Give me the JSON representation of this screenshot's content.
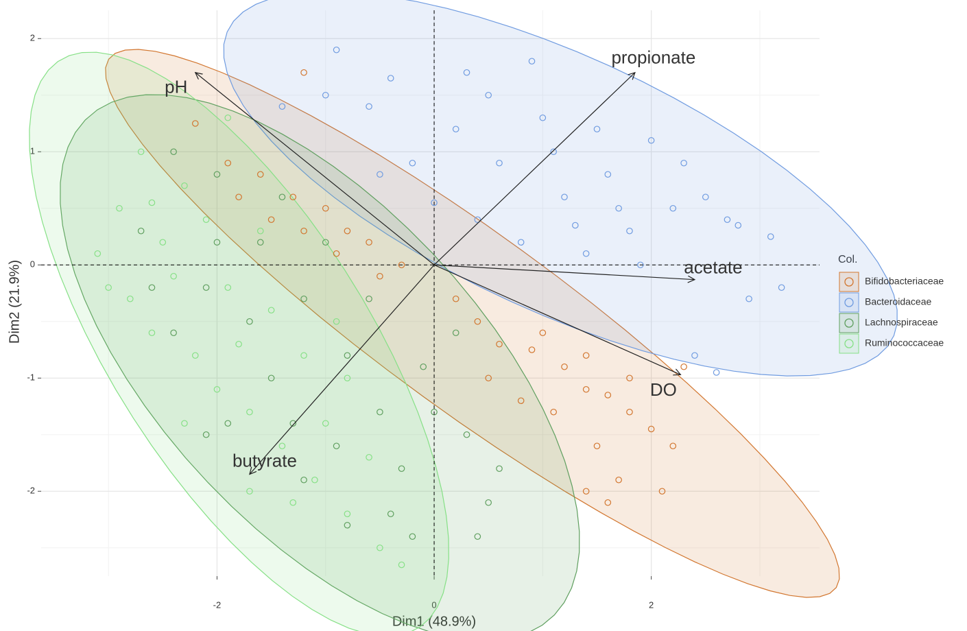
{
  "chart_data": {
    "type": "biplot",
    "xlabel": "Dim1 (48.9%)",
    "ylabel": "Dim2 (21.9%)",
    "xlim": [
      -3.62,
      3.55
    ],
    "ylim": [
      -2.75,
      2.25
    ],
    "xticks": [
      -2,
      0,
      2
    ],
    "yticks": [
      -2,
      -1,
      0,
      1,
      2
    ],
    "xminor": [
      -3,
      -1,
      1,
      3
    ],
    "yminor": [
      -2.5,
      -1.5,
      -0.5,
      0.5,
      1.5
    ],
    "grid": true,
    "legend_title": "Col.",
    "series": [
      {
        "name": "Bifidobacteriaceae",
        "color": "#d2762f",
        "x": [
          -2.2,
          -1.9,
          -1.6,
          -1.3,
          -1.0,
          -0.8,
          -0.6,
          -1.2,
          -1.5,
          -1.8,
          0.4,
          0.6,
          0.9,
          1.2,
          1.4,
          1.6,
          1.8,
          2.0,
          2.2,
          1.8,
          1.4,
          1.0,
          0.8,
          1.5,
          1.6,
          1.4,
          2.1,
          2.3,
          -0.3,
          0.2,
          -1.2,
          -0.9,
          1.1,
          0.5,
          1.7,
          -0.5
        ],
        "y": [
          1.25,
          0.9,
          0.8,
          0.6,
          0.5,
          0.3,
          0.2,
          0.3,
          0.4,
          0.6,
          -0.5,
          -0.7,
          -0.75,
          -0.9,
          -1.1,
          -1.15,
          -1.3,
          -1.45,
          -1.6,
          -1.0,
          -0.8,
          -0.6,
          -1.2,
          -1.6,
          -2.1,
          -2.0,
          -2.0,
          -0.9,
          0.0,
          -0.3,
          1.7,
          0.1,
          -1.3,
          -1.0,
          -1.9,
          -0.1
        ]
      },
      {
        "name": "Bacteroidaceae",
        "color": "#6f9be0",
        "x": [
          -0.9,
          -0.4,
          0.3,
          0.9,
          1.5,
          2.0,
          2.5,
          2.7,
          3.1,
          2.9,
          1.8,
          1.2,
          0.6,
          0.2,
          -0.6,
          -0.2,
          0.8,
          1.4,
          2.2,
          1.6,
          1.0,
          0.4,
          -0.5,
          2.4,
          2.6,
          3.2,
          1.9,
          1.1,
          0.5,
          -1.0,
          2.3,
          1.7,
          0.0,
          1.3,
          2.8,
          -1.4
        ],
        "y": [
          1.9,
          1.65,
          1.7,
          1.8,
          1.2,
          1.1,
          0.6,
          0.4,
          0.25,
          -0.3,
          0.3,
          0.6,
          0.9,
          1.2,
          1.4,
          0.9,
          0.2,
          0.1,
          0.5,
          0.8,
          1.3,
          0.4,
          0.8,
          -0.8,
          -0.95,
          -0.2,
          0.0,
          1.0,
          1.5,
          1.5,
          0.9,
          0.5,
          0.55,
          0.35,
          0.35,
          1.4
        ]
      },
      {
        "name": "Lachnospiraceae",
        "color": "#5f9f5f",
        "x": [
          -2.4,
          -2.0,
          -1.6,
          -1.2,
          -0.8,
          -0.5,
          -0.3,
          -0.2,
          0.3,
          0.5,
          0.6,
          -0.8,
          -1.2,
          -1.5,
          -2.1,
          -2.7,
          -2.4,
          -1.9,
          -2.1,
          -0.6,
          -0.1,
          0.2,
          -1.0,
          -1.4,
          -2.6,
          -0.4,
          0.0,
          -1.7,
          -1.3,
          -0.9,
          -2.0,
          0.4
        ],
        "y": [
          1.0,
          0.8,
          0.2,
          -0.3,
          -0.8,
          -1.3,
          -1.8,
          -2.4,
          -1.5,
          -2.1,
          -1.8,
          -2.3,
          -1.9,
          -1.0,
          -0.2,
          0.3,
          -0.6,
          -1.4,
          -1.5,
          -0.3,
          -0.9,
          -0.6,
          0.2,
          0.6,
          -0.2,
          -2.2,
          -1.3,
          -0.5,
          -1.4,
          -1.6,
          0.2,
          -2.4
        ]
      },
      {
        "name": "Ruminococcaceae",
        "color": "#86e086",
        "x": [
          -3.1,
          -2.9,
          -2.6,
          -2.3,
          -2.5,
          -2.8,
          -2.6,
          -2.2,
          -2.0,
          -1.7,
          -1.4,
          -1.1,
          -0.8,
          -0.5,
          -1.9,
          -1.5,
          -1.2,
          -2.4,
          -3.0,
          -1.9,
          -1.7,
          -1.3,
          -0.8,
          -0.9,
          -2.1,
          -2.7,
          -1.6,
          -1.0,
          -0.6,
          -2.3,
          -0.3,
          -1.8
        ],
        "y": [
          0.1,
          0.5,
          0.55,
          0.7,
          0.2,
          -0.3,
          -0.6,
          -0.8,
          -1.1,
          -1.3,
          -1.6,
          -1.9,
          -2.2,
          -2.5,
          -0.2,
          -0.4,
          -0.8,
          -0.1,
          -0.2,
          1.3,
          -2.0,
          -2.1,
          -1.0,
          -0.5,
          0.4,
          1.0,
          0.3,
          -1.4,
          -1.7,
          -1.4,
          -2.65,
          -0.7
        ]
      }
    ],
    "arrows": [
      {
        "label": "pH",
        "x": -2.2,
        "y": 1.7
      },
      {
        "label": "propionate",
        "x": 1.85,
        "y": 1.7
      },
      {
        "label": "acetate",
        "x": 2.4,
        "y": -0.13
      },
      {
        "label": "DO",
        "x": 2.27,
        "y": -0.97
      },
      {
        "label": "butyrate",
        "x": -1.7,
        "y": -1.85
      }
    ]
  }
}
